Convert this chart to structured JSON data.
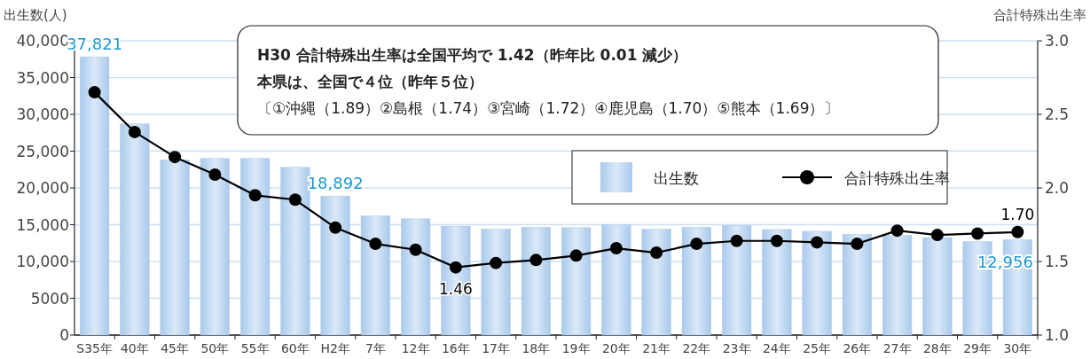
{
  "chart_data": {
    "type": "bar",
    "ylabel": "出生数(人)",
    "y2label": "合計特殊出生率",
    "annotations": [
      "H30 合計特殊出生率は全国平均で 1.42（昨年比 0.01 減少）",
      "本県は、全国で４位（昨年５位）",
      "〔①沖縄（1.89）②島根（1.74）③宮崎（1.72）④鹿児島（1.70）⑤熊本（1.69）〕"
    ],
    "categories": [
      "S35年",
      "40年",
      "45年",
      "50年",
      "55年",
      "60年",
      "H2年",
      "7年",
      "12年",
      "16年",
      "17年",
      "18年",
      "19年",
      "20年",
      "21年",
      "22年",
      "23年",
      "24年",
      "25年",
      "26年",
      "27年",
      "28年",
      "29年",
      "30年"
    ],
    "series": [
      {
        "name": "出生数",
        "color": "#a9c9ec",
        "values": [
          37821,
          28700,
          23800,
          24000,
          24000,
          22800,
          18892,
          16200,
          15800,
          14800,
          14400,
          14650,
          14600,
          15000,
          14400,
          14650,
          14900,
          14350,
          14100,
          13700,
          13550,
          13250,
          12700,
          12956
        ],
        "value_labels": [
          "37,821",
          null,
          null,
          null,
          null,
          null,
          "18,892",
          null,
          null,
          null,
          null,
          null,
          null,
          null,
          null,
          null,
          null,
          null,
          null,
          null,
          null,
          null,
          null,
          "12,956"
        ]
      },
      {
        "name": "合計特殊出生率",
        "type": "line",
        "axis": "y2",
        "color": "#000000",
        "marker": "circle",
        "values": [
          2.65,
          2.38,
          2.21,
          2.09,
          1.95,
          1.92,
          1.73,
          1.62,
          1.58,
          1.46,
          1.49,
          1.51,
          1.54,
          1.59,
          1.56,
          1.62,
          1.64,
          1.64,
          1.63,
          1.62,
          1.71,
          1.68,
          1.69,
          1.7
        ],
        "value_labels": [
          null,
          null,
          null,
          null,
          null,
          null,
          null,
          null,
          null,
          "1.46",
          null,
          null,
          null,
          null,
          null,
          null,
          null,
          null,
          null,
          null,
          null,
          null,
          null,
          "1.70"
        ]
      }
    ],
    "ylim": [
      0,
      40000
    ],
    "yticks": [
      0,
      5000,
      {
        "value": 10000,
        "label": "10,000"
      },
      {
        "value": 15000,
        "label": "15,000"
      },
      {
        "value": 20000,
        "label": "20,000"
      },
      {
        "value": 25000,
        "label": "25,000"
      },
      {
        "value": 30000,
        "label": "30,000"
      },
      {
        "value": 35000,
        "label": "35,000"
      },
      {
        "value": 40000,
        "label": "40,000"
      }
    ],
    "y2lim": [
      1.0,
      3.0
    ],
    "y2ticks": [
      {
        "value": 1.0,
        "label": "1.0"
      },
      {
        "value": 1.5,
        "label": "1.5"
      },
      {
        "value": 2.0,
        "label": "2.0"
      },
      {
        "value": 2.5,
        "label": "2.5"
      },
      {
        "value": 3.0,
        "label": "3.0"
      }
    ],
    "grid": "y",
    "legend": "right"
  }
}
